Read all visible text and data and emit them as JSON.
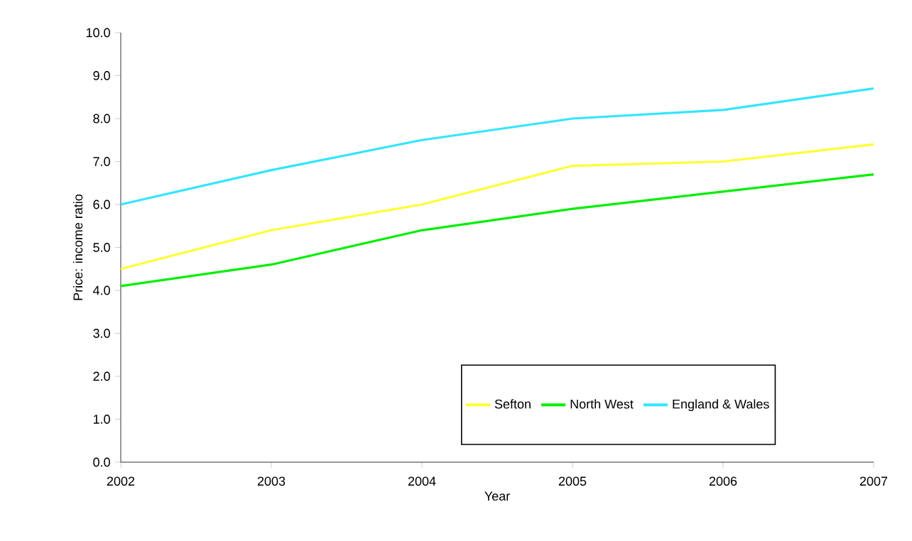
{
  "chart_data": {
    "type": "line",
    "xlabel": "Year",
    "ylabel": "Price: income ratio",
    "categories": [
      "2002",
      "2003",
      "2004",
      "2005",
      "2006",
      "2007"
    ],
    "series": [
      {
        "name": "Sefton",
        "color": "#ffff33",
        "values": [
          4.5,
          5.4,
          6.0,
          6.9,
          7.0,
          7.4
        ]
      },
      {
        "name": "North West",
        "color": "#00ee00",
        "values": [
          4.1,
          4.6,
          5.4,
          5.9,
          6.3,
          6.7
        ]
      },
      {
        "name": "England & Wales",
        "color": "#33e5ff",
        "values": [
          6.0,
          6.8,
          7.5,
          8.0,
          8.2,
          8.7
        ]
      }
    ],
    "ylim": [
      0,
      10
    ],
    "yticks": [
      {
        "value": 0,
        "label": "0.0"
      },
      {
        "value": 1,
        "label": "1.0"
      },
      {
        "value": 2,
        "label": "2.0"
      },
      {
        "value": 3,
        "label": "3.0"
      },
      {
        "value": 4,
        "label": "4.0"
      },
      {
        "value": 5,
        "label": "5.0"
      },
      {
        "value": 6,
        "label": "6.0"
      },
      {
        "value": 7,
        "label": "7.0"
      },
      {
        "value": 8,
        "label": "8.0"
      },
      {
        "value": 9,
        "label": "9.0"
      },
      {
        "value": 10,
        "label": "10.0"
      }
    ],
    "grid": false,
    "legend": "bottom right",
    "marker": "none",
    "line_style": "solid"
  }
}
